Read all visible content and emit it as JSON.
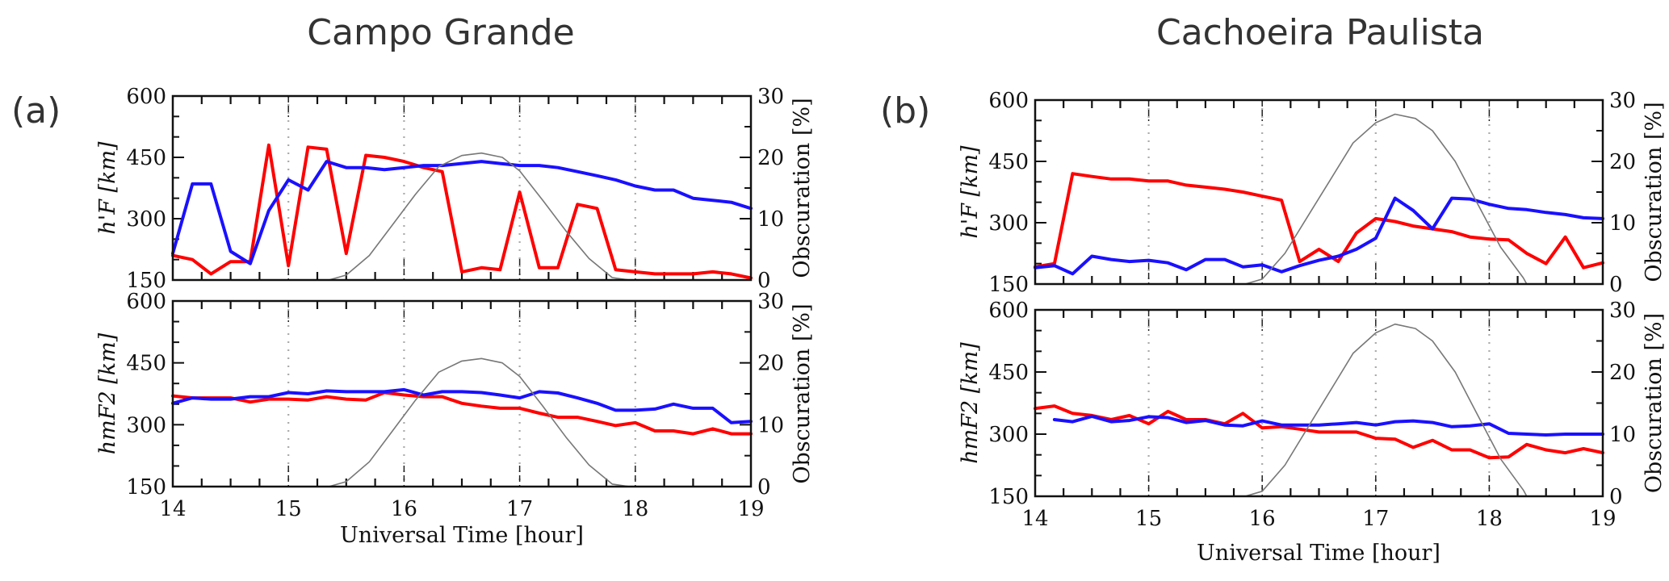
{
  "figure": {
    "panels": [
      {
        "label": "(a)",
        "title": "Campo Grande"
      },
      {
        "label": "(b)",
        "title": "Cachoeira Paulista"
      }
    ],
    "xlabel": "Universal Time [hour]"
  },
  "colors": {
    "red_series": "#ff0000",
    "blue_series": "#1a10ff",
    "obscuration": "#777777",
    "grid": "#aaaaaa"
  },
  "chart_data": [
    {
      "type": "line",
      "panel": "(a)",
      "title": "Campo Grande",
      "subplot": "top",
      "ylabel": "h'F [km]",
      "y2label": "Obscuration [%]",
      "xlabel": "",
      "xlim": [
        14,
        19
      ],
      "ylim": [
        150,
        600
      ],
      "y2lim": [
        0,
        30
      ],
      "yticks": [
        "150",
        "300",
        "450",
        "600"
      ],
      "y2ticks": [
        "0",
        "10",
        "20",
        "30"
      ],
      "xticks": [
        "14",
        "15",
        "16",
        "17",
        "18",
        "19"
      ],
      "grid": "vertical dotted at each hour",
      "series": [
        {
          "name": "red",
          "axis": "left",
          "x": [
            14.0,
            14.17,
            14.33,
            14.5,
            14.67,
            14.83,
            15.0,
            15.17,
            15.33,
            15.5,
            15.67,
            15.83,
            16.0,
            16.17,
            16.33,
            16.5,
            16.67,
            16.83,
            17.0,
            17.17,
            17.33,
            17.5,
            17.67,
            17.83,
            18.0,
            18.17,
            18.33,
            18.5,
            18.67,
            18.83,
            19.0
          ],
          "values": [
            210,
            200,
            165,
            195,
            195,
            480,
            185,
            475,
            470,
            215,
            455,
            450,
            440,
            425,
            415,
            170,
            180,
            175,
            365,
            180,
            180,
            335,
            325,
            175,
            170,
            165,
            165,
            165,
            170,
            165,
            155
          ]
        },
        {
          "name": "blue",
          "axis": "left",
          "x": [
            14.0,
            14.17,
            14.33,
            14.5,
            14.67,
            14.83,
            15.0,
            15.17,
            15.33,
            15.5,
            15.67,
            15.83,
            16.0,
            16.17,
            16.33,
            16.5,
            16.67,
            16.83,
            17.0,
            17.17,
            17.33,
            17.5,
            17.67,
            17.83,
            18.0,
            18.17,
            18.33,
            18.5,
            18.67,
            18.83,
            19.0
          ],
          "values": [
            215,
            385,
            385,
            220,
            190,
            320,
            395,
            370,
            440,
            425,
            425,
            420,
            425,
            430,
            430,
            435,
            440,
            435,
            430,
            430,
            425,
            415,
            405,
            395,
            380,
            370,
            370,
            350,
            345,
            340,
            325
          ]
        },
        {
          "name": "obscuration",
          "axis": "right",
          "x": [
            15.35,
            15.5,
            15.7,
            15.9,
            16.1,
            16.3,
            16.5,
            16.67,
            16.85,
            17.0,
            17.2,
            17.4,
            17.6,
            17.8,
            17.95
          ],
          "values": [
            0,
            0.8,
            4,
            9,
            14,
            18.5,
            20.3,
            20.7,
            20,
            17.8,
            13,
            8,
            3.5,
            0.4,
            0
          ]
        }
      ]
    },
    {
      "type": "line",
      "panel": "(a)",
      "title": "Campo Grande",
      "subplot": "bottom",
      "ylabel": "hmF2 [km]",
      "y2label": "Obscuration [%]",
      "xlabel": "Universal Time [hour]",
      "xlim": [
        14,
        19
      ],
      "ylim": [
        150,
        600
      ],
      "y2lim": [
        0,
        30
      ],
      "yticks": [
        "150",
        "300",
        "450",
        "600"
      ],
      "y2ticks": [
        "0",
        "10",
        "20",
        "30"
      ],
      "xticks": [
        "14",
        "15",
        "16",
        "17",
        "18",
        "19"
      ],
      "grid": "vertical dotted at each hour",
      "series": [
        {
          "name": "red",
          "axis": "left",
          "x": [
            14.0,
            14.17,
            14.33,
            14.5,
            14.67,
            14.83,
            15.0,
            15.17,
            15.33,
            15.5,
            15.67,
            15.83,
            16.0,
            16.17,
            16.33,
            16.5,
            16.67,
            16.83,
            17.0,
            17.17,
            17.33,
            17.5,
            17.67,
            17.83,
            18.0,
            18.17,
            18.33,
            18.5,
            18.67,
            18.83,
            19.0
          ],
          "values": [
            370,
            365,
            365,
            365,
            355,
            362,
            362,
            360,
            368,
            362,
            360,
            378,
            372,
            368,
            368,
            352,
            345,
            340,
            340,
            328,
            318,
            318,
            308,
            298,
            305,
            285,
            285,
            278,
            290,
            278,
            278
          ]
        },
        {
          "name": "blue",
          "axis": "left",
          "x": [
            14.0,
            14.17,
            14.33,
            14.5,
            14.67,
            14.83,
            15.0,
            15.17,
            15.33,
            15.5,
            15.67,
            15.83,
            16.0,
            16.17,
            16.33,
            16.5,
            16.67,
            16.83,
            17.0,
            17.17,
            17.33,
            17.5,
            17.67,
            17.83,
            18.0,
            18.17,
            18.33,
            18.5,
            18.67,
            18.83,
            19.0
          ],
          "values": [
            352,
            365,
            362,
            362,
            368,
            368,
            378,
            375,
            382,
            380,
            380,
            380,
            385,
            372,
            380,
            380,
            378,
            372,
            365,
            380,
            377,
            365,
            352,
            335,
            335,
            338,
            350,
            340,
            340,
            305,
            308
          ]
        },
        {
          "name": "obscuration",
          "axis": "right",
          "x": [
            15.35,
            15.5,
            15.7,
            15.9,
            16.1,
            16.3,
            16.5,
            16.67,
            16.85,
            17.0,
            17.2,
            17.4,
            17.6,
            17.8,
            17.95
          ],
          "values": [
            0,
            0.8,
            4,
            9,
            14,
            18.5,
            20.3,
            20.7,
            20,
            17.8,
            13,
            8,
            3.5,
            0.4,
            0
          ]
        }
      ]
    },
    {
      "type": "line",
      "panel": "(b)",
      "title": "Cachoeira Paulista",
      "subplot": "top",
      "ylabel": "h'F [km]",
      "y2label": "Obscuration [%]",
      "xlabel": "",
      "xlim": [
        14,
        19
      ],
      "ylim": [
        150,
        600
      ],
      "y2lim": [
        0,
        30
      ],
      "yticks": [
        "150",
        "300",
        "450",
        "600"
      ],
      "y2ticks": [
        "0",
        "10",
        "20",
        "30"
      ],
      "xticks": [
        "14",
        "15",
        "16",
        "17",
        "18",
        "19"
      ],
      "grid": "vertical dotted at each hour",
      "series": [
        {
          "name": "red",
          "axis": "left",
          "x": [
            14.0,
            14.17,
            14.33,
            14.5,
            14.67,
            14.83,
            15.0,
            15.17,
            15.33,
            15.5,
            15.67,
            15.83,
            16.0,
            16.17,
            16.33,
            16.5,
            16.67,
            16.83,
            17.0,
            17.17,
            17.33,
            17.5,
            17.67,
            17.83,
            18.0,
            18.17,
            18.33,
            18.5,
            18.67,
            18.83,
            19.0
          ],
          "values": [
            192,
            200,
            420,
            413,
            407,
            407,
            402,
            402,
            392,
            387,
            382,
            375,
            365,
            355,
            205,
            235,
            205,
            275,
            310,
            303,
            292,
            285,
            278,
            265,
            260,
            258,
            225,
            200,
            265,
            190,
            202
          ]
        },
        {
          "name": "blue",
          "axis": "left",
          "x": [
            14.0,
            14.17,
            14.33,
            14.5,
            14.67,
            14.83,
            15.0,
            15.17,
            15.33,
            15.5,
            15.67,
            15.83,
            16.0,
            16.17,
            16.33,
            16.5,
            16.67,
            16.83,
            17.0,
            17.17,
            17.33,
            17.5,
            17.67,
            17.83,
            18.0,
            18.17,
            18.33,
            18.5,
            18.67,
            18.83,
            19.0
          ],
          "values": [
            190,
            195,
            175,
            218,
            210,
            205,
            208,
            202,
            185,
            210,
            210,
            192,
            197,
            180,
            195,
            208,
            218,
            235,
            262,
            360,
            330,
            285,
            360,
            358,
            345,
            335,
            332,
            325,
            320,
            312,
            310
          ]
        },
        {
          "name": "obscuration",
          "axis": "right",
          "x": [
            15.85,
            16.0,
            16.2,
            16.4,
            16.6,
            16.8,
            17.0,
            17.17,
            17.35,
            17.5,
            17.7,
            17.9,
            18.1,
            18.3,
            18.33
          ],
          "values": [
            0,
            0.8,
            5,
            11,
            17,
            23,
            26.3,
            27.7,
            27,
            25,
            20,
            13,
            6,
            1,
            0
          ]
        }
      ]
    },
    {
      "type": "line",
      "panel": "(b)",
      "title": "Cachoeira Paulista",
      "subplot": "bottom",
      "ylabel": "hmF2 [km]",
      "y2label": "Obscuration [%]",
      "xlabel": "Universal Time [hour]",
      "xlim": [
        14,
        19
      ],
      "ylim": [
        150,
        600
      ],
      "y2lim": [
        0,
        30
      ],
      "yticks": [
        "150",
        "300",
        "450",
        "600"
      ],
      "y2ticks": [
        "0",
        "10",
        "20",
        "30"
      ],
      "xticks": [
        "14",
        "15",
        "16",
        "17",
        "18",
        "19"
      ],
      "grid": "vertical dotted at each hour",
      "series": [
        {
          "name": "red",
          "axis": "left",
          "x": [
            14.0,
            14.17,
            14.33,
            14.5,
            14.67,
            14.83,
            15.0,
            15.17,
            15.33,
            15.5,
            15.67,
            15.83,
            16.0,
            16.17,
            16.33,
            16.5,
            16.67,
            16.83,
            17.0,
            17.17,
            17.33,
            17.5,
            17.67,
            17.83,
            18.0,
            18.17,
            18.33,
            18.5,
            18.67,
            18.83,
            19.0
          ],
          "values": [
            362,
            368,
            350,
            345,
            335,
            345,
            325,
            355,
            335,
            335,
            325,
            350,
            315,
            318,
            312,
            305,
            305,
            305,
            290,
            288,
            268,
            285,
            262,
            262,
            243,
            245,
            275,
            262,
            255,
            265,
            255
          ]
        },
        {
          "name": "blue",
          "axis": "left",
          "x": [
            14.17,
            14.33,
            14.5,
            14.67,
            14.83,
            15.0,
            15.17,
            15.33,
            15.5,
            15.67,
            15.83,
            16.0,
            16.17,
            16.33,
            16.5,
            16.67,
            16.83,
            17.0,
            17.17,
            17.33,
            17.5,
            17.67,
            17.83,
            18.0,
            18.17,
            18.33,
            18.5,
            18.67,
            18.83,
            19.0
          ],
          "values": [
            335,
            330,
            343,
            330,
            333,
            342,
            340,
            328,
            333,
            322,
            320,
            332,
            322,
            322,
            322,
            325,
            328,
            322,
            330,
            332,
            328,
            318,
            320,
            325,
            302,
            300,
            298,
            300,
            300,
            300
          ]
        },
        {
          "name": "obscuration",
          "axis": "right",
          "x": [
            15.85,
            16.0,
            16.2,
            16.4,
            16.6,
            16.8,
            17.0,
            17.17,
            17.35,
            17.5,
            17.7,
            17.9,
            18.1,
            18.3,
            18.33
          ],
          "values": [
            0,
            0.8,
            5,
            11,
            17,
            23,
            26.3,
            27.7,
            27,
            25,
            20,
            13,
            6,
            1,
            0
          ]
        }
      ]
    }
  ]
}
